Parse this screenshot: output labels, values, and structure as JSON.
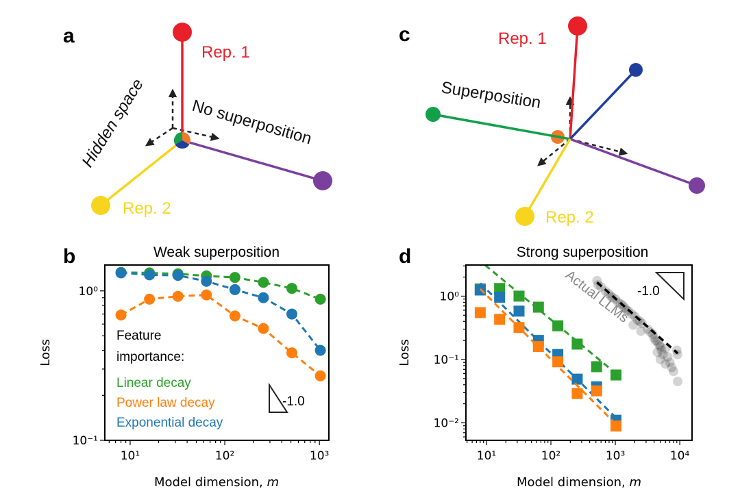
{
  "panels": {
    "a": "a",
    "b": "b",
    "c": "c",
    "d": "d"
  },
  "diagram_a": {
    "rep1": "Rep. 1",
    "rep2": "Rep. 2",
    "hidden_space": "Hidden space",
    "caption": "No superposition"
  },
  "diagram_c": {
    "rep1": "Rep. 1",
    "rep2": "Rep. 2",
    "caption": "Superposition"
  },
  "colors": {
    "red": "#e8202a",
    "yellow": "#f7d51e",
    "purple": "#7b3f9e",
    "green_vec": "#12a04a",
    "blue_vec": "#1f3f9e",
    "orange_vec": "#f07a2a",
    "green": "#2ca02c",
    "orange": "#ff7f0e",
    "blue": "#1f77b4"
  },
  "chart_data": [
    {
      "type": "line",
      "title": "Weak superposition",
      "xlabel_prefix": "Model dimension, ",
      "xlabel_var": "m",
      "ylabel": "Loss",
      "xscale": "log",
      "yscale": "log",
      "xlim": [
        5.4,
        1260
      ],
      "ylim": [
        0.1,
        1.49
      ],
      "xticks": [
        {
          "v": 10,
          "label": "10¹"
        },
        {
          "v": 100,
          "label": "10²"
        },
        {
          "v": 1000,
          "label": "10³"
        }
      ],
      "yticks": [
        {
          "v": 0.1,
          "label": "10⁻¹"
        },
        {
          "v": 1,
          "label": "10⁰"
        }
      ],
      "legend_title_1": "Feature",
      "legend_title_2": "importance:",
      "slope_label": "-1.0",
      "x": [
        8,
        16,
        32,
        64,
        128,
        256,
        512,
        1024
      ],
      "series": [
        {
          "name": "Linear decay",
          "color": "#2ca02c",
          "marker": "circle",
          "values": [
            1.33,
            1.32,
            1.3,
            1.26,
            1.23,
            1.14,
            1.04,
            0.88
          ]
        },
        {
          "name": "Power law decay",
          "color": "#ff7f0e",
          "marker": "circle",
          "values": [
            0.69,
            0.88,
            0.92,
            0.94,
            0.68,
            0.56,
            0.385,
            0.27
          ]
        },
        {
          "name": "Exponential decay",
          "color": "#1f77b4",
          "marker": "circle",
          "values": [
            1.32,
            1.28,
            1.27,
            1.16,
            1.02,
            0.9,
            0.7,
            0.4
          ]
        }
      ]
    },
    {
      "type": "scatter",
      "title": "Strong superposition",
      "xlabel_prefix": "Model dimension, ",
      "xlabel_var": "m",
      "ylabel": "Loss",
      "xscale": "log",
      "yscale": "log",
      "xlim": [
        4.8,
        15500
      ],
      "ylim": [
        0.0053,
        3.1
      ],
      "xticks": [
        {
          "v": 10,
          "label": "10¹"
        },
        {
          "v": 100,
          "label": "10²"
        },
        {
          "v": 1000,
          "label": "10³"
        },
        {
          "v": 10000,
          "label": "10⁴"
        }
      ],
      "yticks": [
        {
          "v": 0.01,
          "label": "10⁻²"
        },
        {
          "v": 0.1,
          "label": "10⁻¹"
        },
        {
          "v": 1,
          "label": "10⁰"
        }
      ],
      "annotation": "Actual LLMs",
      "slope_label": "-1.0",
      "x": [
        8,
        16,
        32,
        64,
        128,
        256,
        512,
        1024
      ],
      "series": [
        {
          "name": "Linear decay",
          "color": "#2ca02c",
          "marker": "square",
          "values": [
            1.3,
            1.32,
            1.0,
            0.67,
            0.34,
            0.175,
            0.077,
            0.057
          ],
          "fit": [
            [
              9.5,
              3.1
            ],
            [
              1024,
              0.06
            ]
          ]
        },
        {
          "name": "Exponential decay",
          "color": "#1f77b4",
          "marker": "square",
          "values": [
            1.25,
            0.96,
            0.58,
            0.2,
            0.12,
            0.049,
            0.037,
            0.011
          ],
          "fit": [
            [
              8,
              1.6
            ],
            [
              1024,
              0.012
            ]
          ]
        },
        {
          "name": "Power law decay",
          "color": "#ff7f0e",
          "marker": "square",
          "values": [
            0.55,
            0.43,
            0.32,
            0.16,
            0.092,
            0.029,
            0.032,
            0.0089
          ],
          "fit": [
            [
              8,
              1.3
            ],
            [
              1024,
              0.0095
            ]
          ]
        }
      ],
      "llm_points": [
        [
          520,
          1.75
        ],
        [
          540,
          1.5
        ],
        [
          600,
          1.4
        ],
        [
          700,
          1.2
        ],
        [
          780,
          1.1
        ],
        [
          850,
          1.0
        ],
        [
          900,
          0.95
        ],
        [
          1000,
          0.9
        ],
        [
          1100,
          0.8
        ],
        [
          1200,
          0.75
        ],
        [
          1300,
          0.72
        ],
        [
          1400,
          0.65
        ],
        [
          1500,
          0.6
        ],
        [
          1600,
          0.58
        ],
        [
          1800,
          0.52
        ],
        [
          2000,
          0.48
        ],
        [
          2200,
          0.42
        ],
        [
          2400,
          0.4
        ],
        [
          2600,
          0.37
        ],
        [
          1900,
          0.35
        ],
        [
          2500,
          0.28
        ],
        [
          3200,
          0.3
        ],
        [
          3500,
          0.27
        ],
        [
          3800,
          0.25
        ],
        [
          4000,
          0.22
        ],
        [
          4200,
          0.2
        ],
        [
          4500,
          0.19
        ],
        [
          4800,
          0.17
        ],
        [
          5000,
          0.16
        ],
        [
          5200,
          0.14
        ],
        [
          4500,
          0.13
        ],
        [
          5500,
          0.12
        ],
        [
          6000,
          0.15
        ],
        [
          6500,
          0.11
        ],
        [
          7000,
          0.09
        ],
        [
          7500,
          0.075
        ],
        [
          8000,
          0.065
        ],
        [
          9000,
          0.14
        ],
        [
          9200,
          0.12
        ],
        [
          9300,
          0.045
        ],
        [
          5000,
          0.1
        ],
        [
          6000,
          0.085
        ]
      ],
      "llm_fit": [
        [
          520,
          1.65
        ],
        [
          9300,
          0.125
        ]
      ]
    }
  ]
}
